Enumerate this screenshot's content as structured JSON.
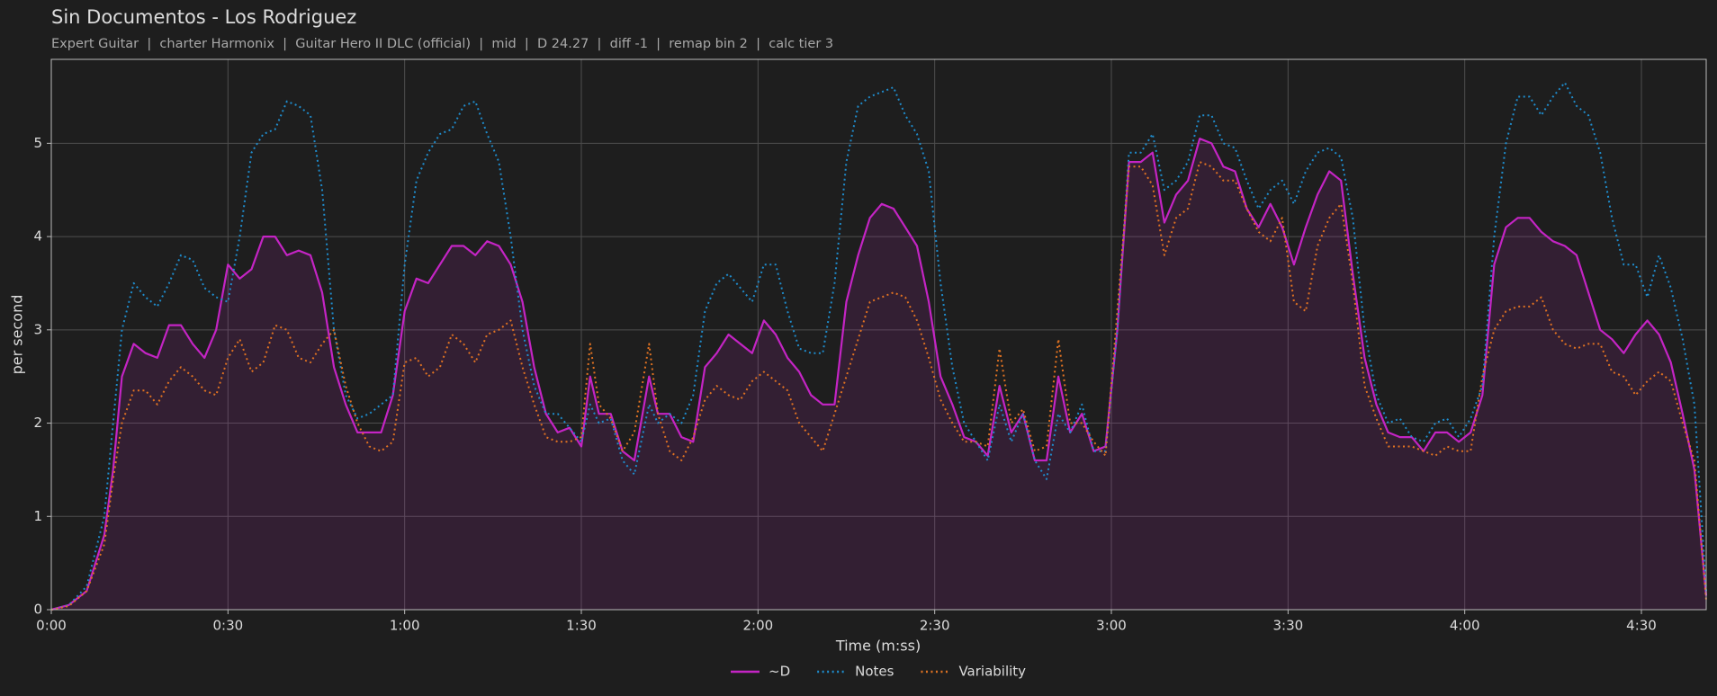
{
  "chart_data": {
    "type": "line",
    "title": "Sin Documentos - Los Rodriguez",
    "subtitle": "Expert Guitar  |  charter Harmonix  |  Guitar Hero II DLC (official)  |  mid  |  D 24.27  |  diff -1  |  remap bin 2  |  calc tier 3",
    "x_label": "Time (m:ss)",
    "y_label": "per second",
    "x": [
      0,
      3,
      6,
      9,
      10.5,
      12,
      14,
      16,
      18,
      20,
      22,
      24,
      26,
      28,
      30,
      32,
      34,
      36,
      38,
      40,
      42,
      44,
      46,
      48,
      50,
      52,
      54,
      56,
      58,
      60,
      62,
      64,
      66,
      68,
      70,
      72,
      74,
      76,
      78,
      80,
      82,
      84,
      86,
      88,
      90,
      91.5,
      93,
      95,
      97,
      99,
      101.5,
      103,
      105,
      107,
      109,
      111,
      113,
      115,
      117,
      119,
      121,
      123,
      125,
      127,
      129,
      131,
      133,
      135,
      137,
      139,
      141,
      143,
      145,
      147,
      149,
      151,
      153,
      155,
      157,
      159,
      161,
      163,
      165,
      167,
      169,
      171,
      173,
      175,
      177,
      179,
      181,
      183,
      185,
      187,
      189,
      191,
      193,
      195,
      197,
      199,
      201,
      203,
      205,
      207,
      209,
      211,
      213,
      215,
      217,
      219,
      221,
      223,
      225,
      227,
      229,
      231,
      233,
      235,
      237,
      239,
      241,
      243,
      245,
      247,
      249,
      251,
      253,
      255,
      257,
      259,
      261,
      263,
      265,
      267,
      269,
      271,
      273,
      275,
      277,
      279,
      281
    ],
    "series": [
      {
        "name": "~D",
        "color": "#c424c4",
        "values": [
          0,
          0.05,
          0.2,
          0.8,
          1.5,
          2.5,
          2.85,
          2.75,
          2.7,
          3.05,
          3.05,
          2.85,
          2.7,
          3.0,
          3.7,
          3.55,
          3.65,
          4.0,
          4.0,
          3.8,
          3.85,
          3.8,
          3.4,
          2.6,
          2.2,
          1.9,
          1.9,
          1.9,
          2.3,
          3.2,
          3.55,
          3.5,
          3.7,
          3.9,
          3.9,
          3.8,
          3.95,
          3.9,
          3.7,
          3.3,
          2.6,
          2.1,
          1.9,
          1.95,
          1.75,
          2.5,
          2.1,
          2.1,
          1.7,
          1.6,
          2.5,
          2.1,
          2.1,
          1.85,
          1.8,
          2.6,
          2.75,
          2.95,
          2.85,
          2.75,
          3.1,
          2.95,
          2.7,
          2.55,
          2.3,
          2.2,
          2.2,
          3.3,
          3.8,
          4.2,
          4.35,
          4.3,
          4.1,
          3.9,
          3.3,
          2.5,
          2.2,
          1.85,
          1.8,
          1.65,
          2.4,
          1.9,
          2.1,
          1.6,
          1.6,
          2.5,
          1.9,
          2.1,
          1.7,
          1.75,
          3.0,
          4.8,
          4.8,
          4.9,
          4.15,
          4.45,
          4.6,
          5.05,
          5.0,
          4.75,
          4.7,
          4.3,
          4.1,
          4.35,
          4.1,
          3.7,
          4.1,
          4.45,
          4.7,
          4.6,
          3.6,
          2.7,
          2.2,
          1.9,
          1.85,
          1.85,
          1.7,
          1.9,
          1.9,
          1.8,
          1.9,
          2.3,
          3.7,
          4.1,
          4.2,
          4.2,
          4.05,
          3.95,
          3.9,
          3.8,
          3.4,
          3.0,
          2.9,
          2.75,
          2.95,
          3.1,
          2.95,
          2.65,
          2.1,
          1.5,
          0.15
        ]
      },
      {
        "name": "Notes",
        "color": "#1f8ccc",
        "values": [
          0,
          0.05,
          0.25,
          1.0,
          2.0,
          3.0,
          3.5,
          3.35,
          3.25,
          3.5,
          3.8,
          3.75,
          3.45,
          3.35,
          3.3,
          4.0,
          4.9,
          5.1,
          5.15,
          5.45,
          5.4,
          5.3,
          4.5,
          3.0,
          2.3,
          2.05,
          2.1,
          2.2,
          2.3,
          3.7,
          4.6,
          4.9,
          5.1,
          5.15,
          5.4,
          5.45,
          5.1,
          4.8,
          4.0,
          3.0,
          2.4,
          2.1,
          2.1,
          1.95,
          1.8,
          2.2,
          2.0,
          2.05,
          1.6,
          1.45,
          2.2,
          2.0,
          2.1,
          2.0,
          2.3,
          3.2,
          3.5,
          3.6,
          3.45,
          3.3,
          3.7,
          3.7,
          3.2,
          2.8,
          2.75,
          2.75,
          3.5,
          4.8,
          5.4,
          5.5,
          5.55,
          5.6,
          5.3,
          5.1,
          4.7,
          3.5,
          2.6,
          2.0,
          1.8,
          1.6,
          2.2,
          1.8,
          2.1,
          1.6,
          1.4,
          2.1,
          1.9,
          2.2,
          1.7,
          1.7,
          3.0,
          4.9,
          4.9,
          5.1,
          4.5,
          4.6,
          4.8,
          5.3,
          5.3,
          5.0,
          4.95,
          4.6,
          4.3,
          4.5,
          4.6,
          4.35,
          4.7,
          4.9,
          4.95,
          4.85,
          4.2,
          3.0,
          2.3,
          2.0,
          2.05,
          1.85,
          1.8,
          2.0,
          2.05,
          1.85,
          2.05,
          2.4,
          4.0,
          5.0,
          5.5,
          5.5,
          5.3,
          5.5,
          5.65,
          5.4,
          5.3,
          4.9,
          4.2,
          3.7,
          3.7,
          3.35,
          3.8,
          3.45,
          2.9,
          2.2,
          0.2
        ]
      },
      {
        "name": "Variability",
        "color": "#e07222",
        "values": [
          0,
          0.04,
          0.2,
          0.7,
          1.4,
          2.0,
          2.35,
          2.35,
          2.2,
          2.45,
          2.6,
          2.5,
          2.35,
          2.3,
          2.7,
          2.9,
          2.55,
          2.65,
          3.05,
          3.0,
          2.7,
          2.65,
          2.85,
          3.0,
          2.4,
          2.0,
          1.75,
          1.7,
          1.8,
          2.65,
          2.7,
          2.5,
          2.6,
          2.95,
          2.85,
          2.65,
          2.95,
          3.0,
          3.1,
          2.6,
          2.2,
          1.85,
          1.8,
          1.8,
          1.85,
          2.85,
          2.2,
          2.05,
          1.7,
          1.9,
          2.85,
          2.1,
          1.7,
          1.6,
          1.85,
          2.25,
          2.4,
          2.3,
          2.25,
          2.45,
          2.55,
          2.45,
          2.35,
          2.0,
          1.85,
          1.7,
          2.1,
          2.5,
          2.9,
          3.3,
          3.35,
          3.4,
          3.35,
          3.1,
          2.7,
          2.25,
          2.0,
          1.8,
          1.8,
          1.75,
          2.8,
          2.0,
          2.15,
          1.7,
          1.75,
          2.9,
          2.0,
          2.0,
          1.8,
          1.65,
          3.2,
          4.75,
          4.75,
          4.55,
          3.8,
          4.2,
          4.3,
          4.8,
          4.75,
          4.6,
          4.6,
          4.3,
          4.05,
          3.95,
          4.2,
          3.3,
          3.2,
          3.9,
          4.2,
          4.35,
          3.5,
          2.4,
          2.05,
          1.75,
          1.75,
          1.75,
          1.7,
          1.65,
          1.75,
          1.7,
          1.7,
          2.5,
          3.0,
          3.2,
          3.25,
          3.25,
          3.35,
          3.0,
          2.85,
          2.8,
          2.85,
          2.85,
          2.55,
          2.5,
          2.3,
          2.45,
          2.55,
          2.45,
          2.0,
          1.6,
          0.1
        ]
      }
    ],
    "xlim": [
      0,
      281
    ],
    "xticks": [
      {
        "value": 0,
        "label": "0:00"
      },
      {
        "value": 30,
        "label": "0:30"
      },
      {
        "value": 60,
        "label": "1:00"
      },
      {
        "value": 90,
        "label": "1:30"
      },
      {
        "value": 120,
        "label": "2:00"
      },
      {
        "value": 150,
        "label": "2:30"
      },
      {
        "value": 180,
        "label": "3:00"
      },
      {
        "value": 210,
        "label": "3:30"
      },
      {
        "value": 240,
        "label": "4:00"
      },
      {
        "value": 270,
        "label": "4:30"
      }
    ],
    "ylim": [
      0,
      5.9
    ],
    "yticks": [
      0,
      1,
      2,
      3,
      4,
      5
    ],
    "grid": true,
    "legend": "bottom"
  }
}
